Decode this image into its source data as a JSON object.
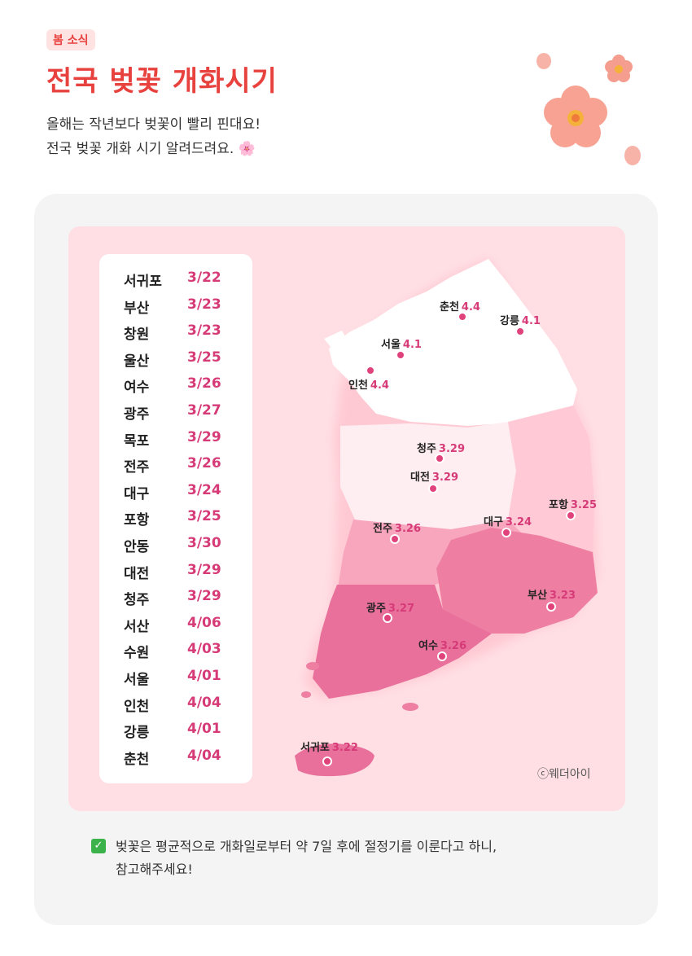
{
  "header": {
    "tag": "봄 소식",
    "title": "전국 벚꽃 개화시기",
    "intro_line1": "올해는 작년보다 벚꽃이 빨리 핀대요!",
    "intro_line2": "전국 벚꽃 개화 시기 알려드려요. 🌸"
  },
  "list": [
    {
      "city": "서귀포",
      "date": "3/22"
    },
    {
      "city": "부산",
      "date": "3/23"
    },
    {
      "city": "창원",
      "date": "3/23"
    },
    {
      "city": "울산",
      "date": "3/25"
    },
    {
      "city": "여수",
      "date": "3/26"
    },
    {
      "city": "광주",
      "date": "3/27"
    },
    {
      "city": "목포",
      "date": "3/29"
    },
    {
      "city": "전주",
      "date": "3/26"
    },
    {
      "city": "대구",
      "date": "3/24"
    },
    {
      "city": "포항",
      "date": "3/25"
    },
    {
      "city": "안동",
      "date": "3/30"
    },
    {
      "city": "대전",
      "date": "3/29"
    },
    {
      "city": "청주",
      "date": "3/29"
    },
    {
      "city": "서산",
      "date": "4/06"
    },
    {
      "city": "수원",
      "date": "4/03"
    },
    {
      "city": "서울",
      "date": "4/01"
    },
    {
      "city": "인천",
      "date": "4/04"
    },
    {
      "city": "강릉",
      "date": "4/01"
    },
    {
      "city": "춘천",
      "date": "4/04"
    }
  ],
  "map_markers": [
    {
      "city": "춘천",
      "date": "4.4"
    },
    {
      "city": "강릉",
      "date": "4.1"
    },
    {
      "city": "서울",
      "date": "4.1"
    },
    {
      "city": "인천",
      "date": "4.4"
    },
    {
      "city": "청주",
      "date": "3.29"
    },
    {
      "city": "대전",
      "date": "3.29"
    },
    {
      "city": "포항",
      "date": "3.25"
    },
    {
      "city": "대구",
      "date": "3.24"
    },
    {
      "city": "전주",
      "date": "3.26"
    },
    {
      "city": "부산",
      "date": "3.23"
    },
    {
      "city": "광주",
      "date": "3.27"
    },
    {
      "city": "여수",
      "date": "3.26"
    },
    {
      "city": "서귀포",
      "date": "3.22"
    }
  ],
  "copyright": "ⓒ웨더아이",
  "note": {
    "line1": "벚꽃은 평균적으로 개화일로부터 약 7일 후에 절정기를 이룬다고 하니,",
    "line2": "참고해주세요!"
  },
  "colors": {
    "accent": "#e8423f",
    "date_pink": "#d63b78",
    "marker": "#e0427c",
    "panel_bg": "#ffdfe4"
  },
  "icons": [
    "cherry-blossom-icon",
    "check-icon"
  ]
}
